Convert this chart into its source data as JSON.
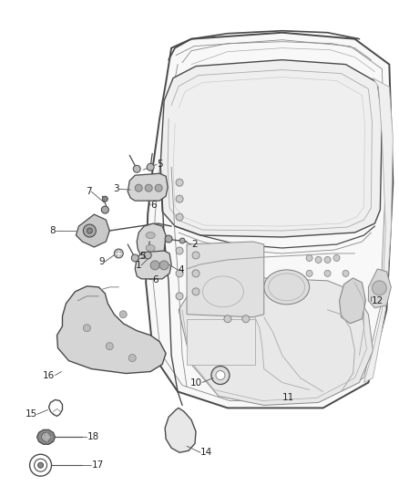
{
  "bg_color": "#ffffff",
  "fig_width": 4.38,
  "fig_height": 5.33,
  "dpi": 100,
  "line_color": "#4a4a4a",
  "light_gray": "#e8e8e8",
  "mid_gray": "#d0d0d0",
  "dark_gray": "#aaaaaa"
}
